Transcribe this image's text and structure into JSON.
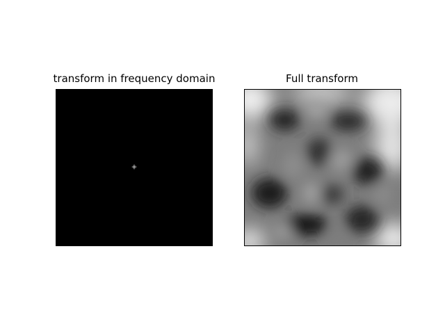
{
  "figure": {
    "background": "#ffffff"
  },
  "chart_data": [
    {
      "type": "heatmap",
      "title": "transform in frequency domain",
      "xlabel": "",
      "ylabel": "",
      "axis_ticks": false,
      "colormap": "gray",
      "content": "black field with a single bright point at the center (DC component of the spectrum)",
      "peak_location": "center",
      "background_color": "#000000",
      "peak_color": "#ffffff"
    },
    {
      "type": "heatmap",
      "title": "Full transform",
      "xlabel": "",
      "ylabel": "",
      "axis_ticks": false,
      "colormap": "gray",
      "content": "blurred grayscale noise field, brighter near the edges and corners, darker blotches in the interior",
      "value_range": [
        0,
        1
      ]
    }
  ]
}
